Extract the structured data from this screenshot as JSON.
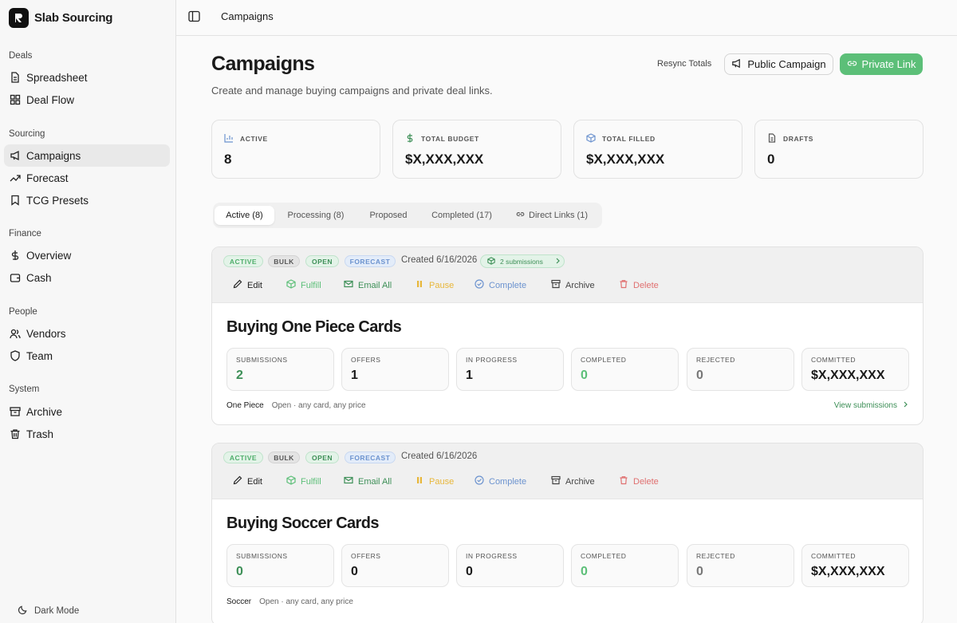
{
  "brand": {
    "name": "Slab Sourcing"
  },
  "sidebar": {
    "groups": [
      {
        "label": "Deals",
        "items": [
          {
            "label": "Spreadsheet",
            "icon": "document-icon"
          },
          {
            "label": "Deal Flow",
            "icon": "grid-icon"
          }
        ]
      },
      {
        "label": "Sourcing",
        "items": [
          {
            "label": "Campaigns",
            "icon": "megaphone-icon",
            "active": true
          },
          {
            "label": "Forecast",
            "icon": "trend-icon"
          },
          {
            "label": "TCG Presets",
            "icon": "bookmark-icon"
          }
        ]
      },
      {
        "label": "Finance",
        "items": [
          {
            "label": "Overview",
            "icon": "dollar-icon"
          },
          {
            "label": "Cash",
            "icon": "wallet-icon"
          }
        ]
      },
      {
        "label": "People",
        "items": [
          {
            "label": "Vendors",
            "icon": "users-icon"
          },
          {
            "label": "Team",
            "icon": "shield-icon"
          }
        ]
      },
      {
        "label": "System",
        "items": [
          {
            "label": "Archive",
            "icon": "archive-icon"
          },
          {
            "label": "Trash",
            "icon": "trash-icon"
          }
        ]
      }
    ],
    "dark_mode_label": "Dark Mode"
  },
  "topbar": {
    "breadcrumb": "Campaigns"
  },
  "header": {
    "title": "Campaigns",
    "subtitle": "Create and manage buying campaigns and private deal links.",
    "resync_label": "Resync Totals",
    "public_button": "Public Campaign",
    "private_button": "Private Link"
  },
  "stats": [
    {
      "label": "ACTIVE",
      "value": "8",
      "icon": "bar-chart-icon"
    },
    {
      "label": "TOTAL BUDGET",
      "value": "$X,XXX,XXX",
      "icon": "dollar-icon"
    },
    {
      "label": "TOTAL FILLED",
      "value": "$X,XXX,XXX",
      "icon": "box-icon"
    },
    {
      "label": "DRAFTS",
      "value": "0",
      "icon": "document-icon"
    }
  ],
  "tabs": [
    {
      "label": "Active (8)",
      "active": true
    },
    {
      "label": "Processing (8)"
    },
    {
      "label": "Proposed"
    },
    {
      "label": "Completed (17)"
    },
    {
      "label": "Direct Links (1)",
      "icon": "link-icon"
    }
  ],
  "actions": [
    "Edit",
    "Fulfill",
    "Email All",
    "Pause",
    "Complete",
    "Archive",
    "Delete"
  ],
  "badges": [
    "ACTIVE",
    "BULK",
    "OPEN",
    "FORECAST"
  ],
  "metric_labels": [
    "SUBMISSIONS",
    "OFFERS",
    "IN PROGRESS",
    "COMPLETED",
    "REJECTED",
    "COMMITTED"
  ],
  "campaigns": [
    {
      "created": "Created 6/16/2026",
      "submissions_pill": "2 submissions",
      "title": "Buying One Piece Cards",
      "metrics": [
        "2",
        "1",
        "1",
        "0",
        "0",
        "$X,XXX,XXX"
      ],
      "category": "One Piece",
      "description": "Open · any card, any price",
      "view_link": "View submissions"
    },
    {
      "created": "Created 6/16/2026",
      "title": "Buying Soccer Cards",
      "metrics": [
        "0",
        "0",
        "0",
        "0",
        "0",
        "$X,XXX,XXX"
      ],
      "category": "Soccer",
      "description": "Open · any card, any price"
    }
  ],
  "colors": {
    "accent_green": "#5cbf78",
    "green_text": "#3d8f57",
    "blue": "#6c93cf",
    "amber": "#e8b73a",
    "red": "#e07070"
  }
}
